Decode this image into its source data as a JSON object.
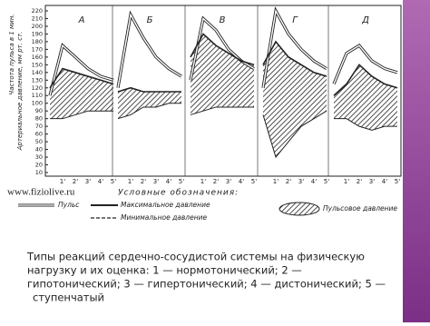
{
  "chart_data": [
    {
      "type": "line",
      "title": "А",
      "categories": [
        null,
        "1'",
        "2'",
        "3'",
        "4'",
        "5'"
      ],
      "ylim": [
        10,
        220
      ],
      "yticks": [
        10,
        20,
        30,
        40,
        50,
        60,
        70,
        80,
        90,
        100,
        110,
        120,
        130,
        140,
        150,
        160,
        170,
        180,
        190,
        200,
        210,
        220
      ],
      "series": [
        {
          "name": "Пульс",
          "color": "#222222",
          "values": [
            110,
            175,
            160,
            145,
            135,
            130
          ]
        },
        {
          "name": "Максимальное давление",
          "color": "#222222",
          "values": [
            120,
            145,
            140,
            135,
            130,
            125
          ]
        },
        {
          "name": "Минимальное давление",
          "color": "#222222",
          "values": [
            80,
            80,
            85,
            90,
            90,
            90
          ]
        }
      ]
    },
    {
      "type": "line",
      "title": "Б",
      "categories": [
        null,
        "1'",
        "2'",
        "3'",
        "4'",
        "5'"
      ],
      "ylim": [
        10,
        220
      ],
      "series": [
        {
          "name": "Пульс",
          "color": "#222222",
          "values": [
            120,
            215,
            185,
            160,
            145,
            135
          ]
        },
        {
          "name": "Максимальное давление",
          "color": "#222222",
          "values": [
            115,
            120,
            115,
            115,
            115,
            115
          ]
        },
        {
          "name": "Минимальное давление",
          "color": "#222222",
          "values": [
            80,
            85,
            95,
            95,
            100,
            100
          ]
        }
      ]
    },
    {
      "type": "line",
      "title": "В",
      "categories": [
        null,
        "1'",
        "2'",
        "3'",
        "4'",
        "5'"
      ],
      "ylim": [
        10,
        220
      ],
      "series": [
        {
          "name": "Пульс",
          "color": "#222222",
          "values": [
            130,
            210,
            195,
            170,
            155,
            145
          ]
        },
        {
          "name": "Максимальное давление",
          "color": "#222222",
          "values": [
            160,
            190,
            175,
            165,
            155,
            150
          ]
        },
        {
          "name": "Минимальное давление",
          "color": "#222222",
          "values": [
            85,
            90,
            95,
            95,
            95,
            95
          ]
        }
      ]
    },
    {
      "type": "line",
      "title": "Г",
      "categories": [
        null,
        "1'",
        "2'",
        "3'",
        "4'",
        "5'"
      ],
      "ylim": [
        10,
        220
      ],
      "series": [
        {
          "name": "Пульс",
          "color": "#222222",
          "values": [
            120,
            220,
            190,
            170,
            155,
            145
          ]
        },
        {
          "name": "Максимальное давление",
          "color": "#222222",
          "values": [
            150,
            180,
            160,
            150,
            140,
            135
          ]
        },
        {
          "name": "Минимальное давление",
          "color": "#222222",
          "values": [
            85,
            30,
            50,
            70,
            80,
            90
          ]
        }
      ]
    },
    {
      "type": "line",
      "title": "Д",
      "categories": [
        null,
        "1'",
        "2'",
        "3'",
        "4'",
        "5'"
      ],
      "ylim": [
        10,
        220
      ],
      "series": [
        {
          "name": "Пульс",
          "color": "#222222",
          "values": [
            125,
            165,
            175,
            155,
            145,
            140
          ]
        },
        {
          "name": "Максимальное давление",
          "color": "#222222",
          "values": [
            110,
            125,
            150,
            135,
            125,
            120
          ]
        },
        {
          "name": "Минимальное давление",
          "color": "#222222",
          "values": [
            80,
            80,
            70,
            65,
            70,
            70
          ]
        }
      ]
    }
  ],
  "y_axis_labels": [
    "Частота пульса в 1 мин.",
    "Артериальное давление, мм рт. ст."
  ],
  "legend_title": "Условные обозначения:",
  "legend": [
    "Пульс",
    "Максимальное давление",
    "Минимальное давление",
    "Пульсовое давление"
  ],
  "watermark": "www.fiziolive.ru",
  "caption": [
    "Типы реакций сердечно-сосудистой системы на физическую",
    "нагрузку и их оценка: 1 — нормотонический; 2 —",
    "гипотонический; 3 — гипертонический; 4 — дистонический; 5 —",
    "ступенчатый"
  ]
}
